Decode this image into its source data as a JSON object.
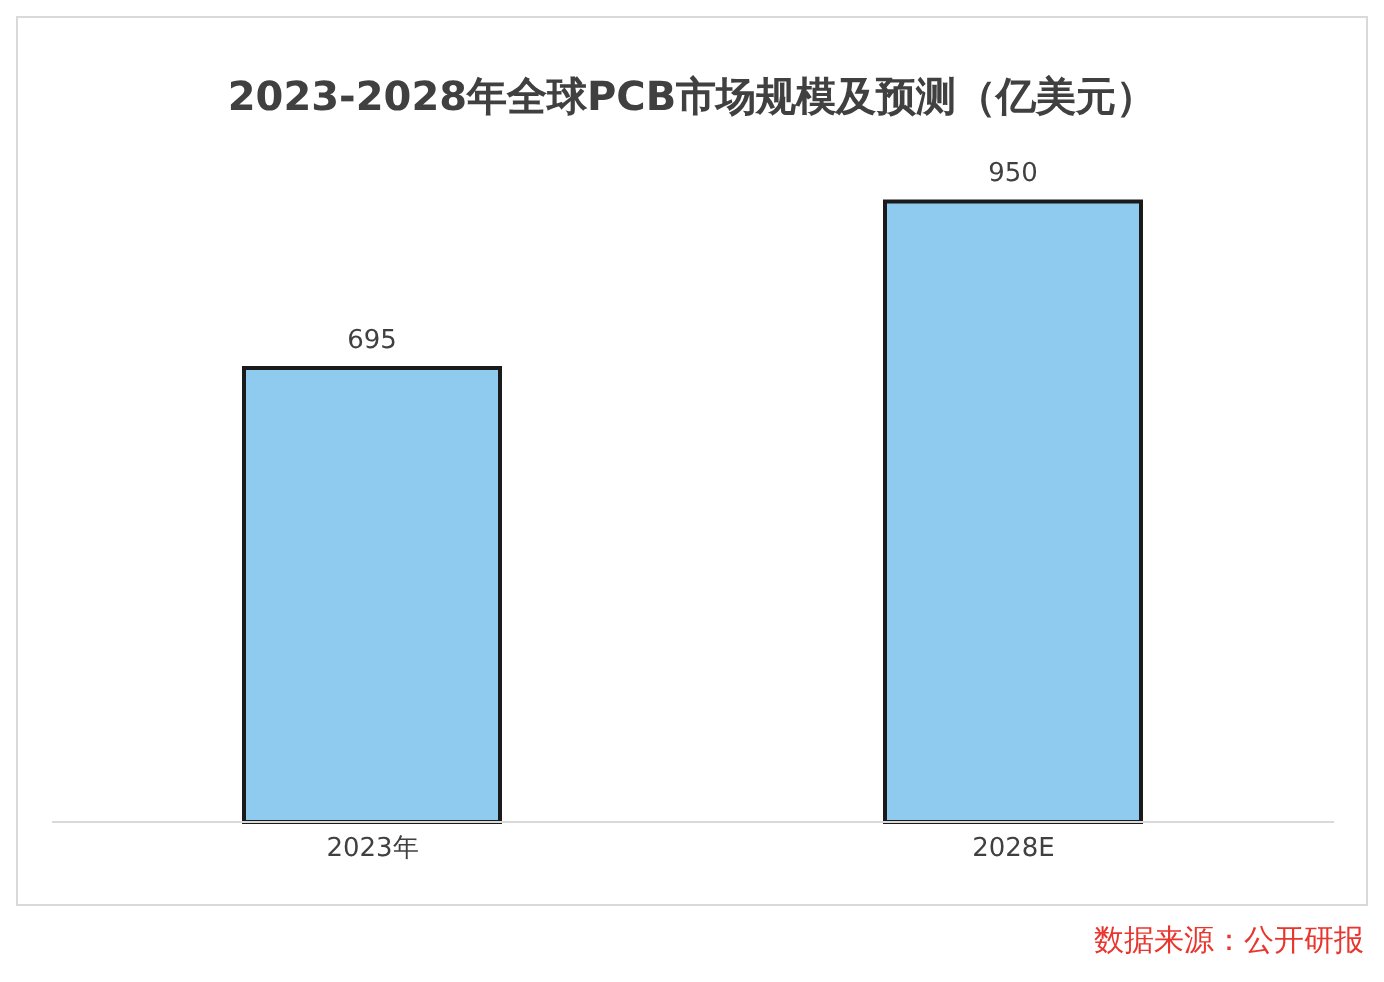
{
  "chart_data": {
    "type": "bar",
    "title": "2023-2028年全球PCB市场规模及预测（亿美元）",
    "categories": [
      "2023年",
      "2028E"
    ],
    "values": [
      695,
      950
    ],
    "color": "#8fcbee",
    "data_labels": true,
    "grid": false,
    "annotations": [
      "数据来源：公开研报"
    ]
  }
}
